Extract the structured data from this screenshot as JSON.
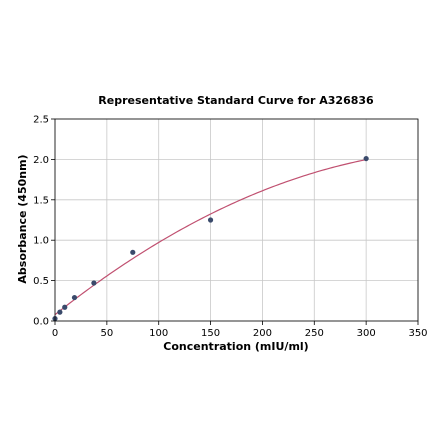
{
  "chart_data": {
    "type": "scatter",
    "title": "Representative Standard Curve for A326836",
    "xlabel": "Concentration (mIU/ml)",
    "ylabel": "Absorbance (450nm)",
    "xlim": [
      0,
      350
    ],
    "ylim": [
      0,
      2.5
    ],
    "xticks": [
      0,
      50,
      100,
      150,
      200,
      250,
      300,
      350
    ],
    "yticks": [
      0.0,
      0.5,
      1.0,
      1.5,
      2.0,
      2.5
    ],
    "xtick_labels": [
      "0",
      "50",
      "100",
      "150",
      "200",
      "250",
      "300",
      "350"
    ],
    "ytick_labels": [
      "0.0",
      "0.5",
      "1.0",
      "1.5",
      "2.0",
      "2.5"
    ],
    "grid": true,
    "legend": false,
    "series": [
      {
        "x": [
          0,
          4.7,
          9.4,
          18.8,
          37.5,
          75,
          150,
          300
        ],
        "y": [
          0.03,
          0.11,
          0.17,
          0.29,
          0.47,
          0.85,
          1.25,
          2.01
        ],
        "marker_color": "#3a4a6b",
        "fit_curve": true,
        "fit_color": "#c05070"
      }
    ]
  }
}
